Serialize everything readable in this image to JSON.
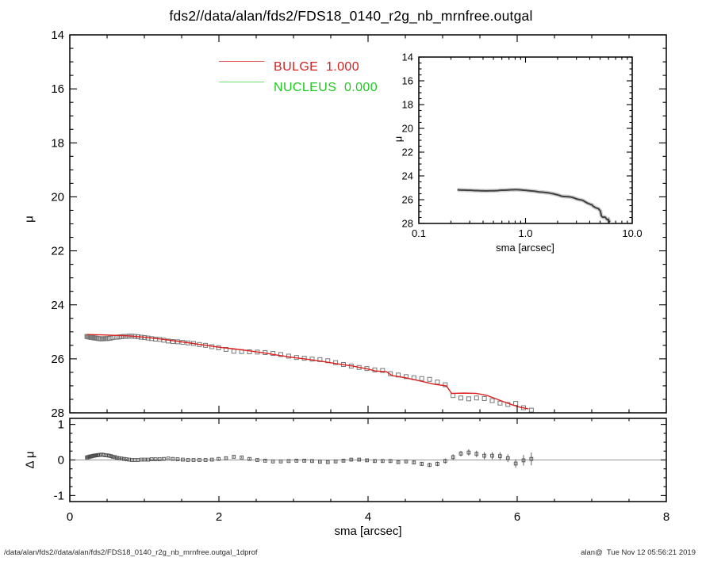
{
  "title": "fds2//data/alan/fds2/FDS18_0140_r2g_nb_mrnfree.outgal",
  "footer": {
    "left": "/data/alan/fds2//data/alan/fds2/FDS18_0140_r2g_nb_mrnfree.outgal_1dprof",
    "right": "alan@  Tue Nov 12 05:56:21 2019"
  },
  "legend": {
    "items": [
      {
        "label": "BULGE",
        "value": "1.000",
        "color": "#d42020",
        "line_color": "#e06060"
      },
      {
        "label": "NUCLEUS",
        "value": "0.000",
        "color": "#1ec81e",
        "line_color": "#6fdc6f"
      }
    ]
  },
  "chart_data": {
    "main": {
      "type": "scatter",
      "xlabel": "sma [arcsec]",
      "ylabel": "μ",
      "xlim": [
        0,
        8
      ],
      "ylim": [
        28,
        14
      ],
      "x_ticks": [
        0,
        2,
        4,
        6,
        8
      ],
      "x_tick_labels": [
        "0",
        "2",
        "4",
        "6",
        "8"
      ],
      "y_ticks": [
        14,
        16,
        18,
        20,
        22,
        24,
        26,
        28
      ],
      "y_tick_labels": [
        "14",
        "16",
        "18",
        "20",
        "22",
        "24",
        "26",
        "28"
      ],
      "x_minor_step": 0.5,
      "y_minor_step": 0.5,
      "grid": false,
      "series": [
        {
          "name": "surface-brightness-data",
          "kind": "marker",
          "marker": "open-square",
          "color": "#777777",
          "points": [
            [
              0.23,
              25.17
            ],
            [
              0.241,
              25.18
            ],
            [
              0.252,
              25.19
            ],
            [
              0.264,
              25.19
            ],
            [
              0.276,
              25.2
            ],
            [
              0.289,
              25.21
            ],
            [
              0.303,
              25.21
            ],
            [
              0.317,
              25.22
            ],
            [
              0.332,
              25.23
            ],
            [
              0.348,
              25.23
            ],
            [
              0.364,
              25.24
            ],
            [
              0.381,
              25.25
            ],
            [
              0.399,
              25.25
            ],
            [
              0.418,
              25.26
            ],
            [
              0.438,
              25.26
            ],
            [
              0.458,
              25.25
            ],
            [
              0.48,
              25.25
            ],
            [
              0.502,
              25.25
            ],
            [
              0.526,
              25.24
            ],
            [
              0.551,
              25.23
            ],
            [
              0.577,
              25.21
            ],
            [
              0.604,
              25.2
            ],
            [
              0.632,
              25.2
            ],
            [
              0.662,
              25.19
            ],
            [
              0.693,
              25.18
            ],
            [
              0.726,
              25.17
            ],
            [
              0.76,
              25.17
            ],
            [
              0.796,
              25.16
            ],
            [
              0.833,
              25.16
            ],
            [
              0.873,
              25.17
            ],
            [
              0.914,
              25.18
            ],
            [
              0.957,
              25.2
            ],
            [
              1.002,
              25.21
            ],
            [
              1.049,
              25.23
            ],
            [
              1.098,
              25.25
            ],
            [
              1.15,
              25.27
            ],
            [
              1.204,
              25.28
            ],
            [
              1.26,
              25.31
            ],
            [
              1.32,
              25.34
            ],
            [
              1.382,
              25.36
            ],
            [
              1.447,
              25.37
            ],
            [
              1.515,
              25.39
            ],
            [
              1.586,
              25.41
            ],
            [
              1.66,
              25.43
            ],
            [
              1.738,
              25.47
            ],
            [
              1.82,
              25.5
            ],
            [
              1.906,
              25.55
            ],
            [
              1.995,
              25.59
            ],
            [
              2.095,
              25.65
            ],
            [
              2.2,
              25.72
            ],
            [
              2.305,
              25.73
            ],
            [
              2.41,
              25.74
            ],
            [
              2.515,
              25.75
            ],
            [
              2.62,
              25.77
            ],
            [
              2.725,
              25.8
            ],
            [
              2.83,
              25.84
            ],
            [
              2.935,
              25.9
            ],
            [
              3.04,
              25.95
            ],
            [
              3.145,
              25.98
            ],
            [
              3.25,
              26.01
            ],
            [
              3.355,
              26.03
            ],
            [
              3.46,
              26.07
            ],
            [
              3.565,
              26.14
            ],
            [
              3.67,
              26.21
            ],
            [
              3.775,
              26.27
            ],
            [
              3.88,
              26.32
            ],
            [
              3.985,
              26.36
            ],
            [
              4.09,
              26.41
            ],
            [
              4.195,
              26.43
            ],
            [
              4.3,
              26.55
            ],
            [
              4.405,
              26.6
            ],
            [
              4.51,
              26.66
            ],
            [
              4.615,
              26.7
            ],
            [
              4.72,
              26.73
            ],
            [
              4.825,
              26.76
            ],
            [
              4.93,
              26.86
            ],
            [
              5.035,
              26.96
            ],
            [
              5.14,
              27.36
            ],
            [
              5.245,
              27.45
            ],
            [
              5.35,
              27.48
            ],
            [
              5.455,
              27.45
            ],
            [
              5.56,
              27.47
            ],
            [
              5.665,
              27.55
            ],
            [
              5.77,
              27.64
            ],
            [
              5.875,
              27.69
            ],
            [
              5.98,
              27.65
            ],
            [
              6.085,
              27.81
            ],
            [
              6.19,
              27.9
            ]
          ]
        },
        {
          "name": "bulge-model",
          "kind": "line",
          "color": "#dd2020",
          "points": [
            [
              0.23,
              25.1
            ],
            [
              0.4,
              25.11
            ],
            [
              0.6,
              25.13
            ],
            [
              0.8,
              25.15
            ],
            [
              1.0,
              25.2
            ],
            [
              1.2,
              25.26
            ],
            [
              1.4,
              25.33
            ],
            [
              1.6,
              25.41
            ],
            [
              1.8,
              25.49
            ],
            [
              2.0,
              25.57
            ],
            [
              2.2,
              25.63
            ],
            [
              2.4,
              25.7
            ],
            [
              2.6,
              25.78
            ],
            [
              2.8,
              25.87
            ],
            [
              3.0,
              25.95
            ],
            [
              3.2,
              26.02
            ],
            [
              3.4,
              26.1
            ],
            [
              3.6,
              26.19
            ],
            [
              3.8,
              26.27
            ],
            [
              4.0,
              26.38
            ],
            [
              4.1,
              26.45
            ],
            [
              4.25,
              26.48
            ],
            [
              4.32,
              26.62
            ],
            [
              4.5,
              26.7
            ],
            [
              4.7,
              26.82
            ],
            [
              4.9,
              26.95
            ],
            [
              5.05,
              27.0
            ],
            [
              5.12,
              27.28
            ],
            [
              5.3,
              27.27
            ],
            [
              5.45,
              27.28
            ],
            [
              5.6,
              27.36
            ],
            [
              5.8,
              27.57
            ],
            [
              5.95,
              27.72
            ],
            [
              6.05,
              27.8
            ],
            [
              6.15,
              27.85
            ]
          ]
        }
      ]
    },
    "inset": {
      "type": "line",
      "xscale": "log",
      "xlabel": "sma [arcsec]",
      "ylabel": "μ",
      "xlim": [
        0.1,
        10
      ],
      "ylim": [
        28,
        14
      ],
      "x_ticks": [
        0.1,
        1.0,
        10.0
      ],
      "x_tick_labels": [
        "0.1",
        "1.0",
        "10.0"
      ],
      "y_ticks": [
        14,
        16,
        18,
        20,
        22,
        24,
        26,
        28
      ],
      "y_tick_labels": [
        "14",
        "16",
        "18",
        "20",
        "22",
        "24",
        "26",
        "28"
      ],
      "y_minor_step": 0.5,
      "series_ref": "main.series.0.points",
      "band_color": "#aaaaaa",
      "line_color": "#404040"
    },
    "residuals": {
      "type": "scatter",
      "xlabel": "sma [arcsec]",
      "ylabel": "Δ μ",
      "xlim": [
        0,
        8
      ],
      "ylim": [
        -1,
        1
      ],
      "x_ticks": [
        0,
        2,
        4,
        6,
        8
      ],
      "x_tick_labels": [
        "0",
        "2",
        "4",
        "6",
        "8"
      ],
      "y_ticks": [
        -1,
        0,
        1
      ],
      "y_tick_labels": [
        "-1",
        "0",
        "1"
      ],
      "x_minor_step": 0.5,
      "y_minor_step": 0.25,
      "zero_line": true,
      "zero_line_color": "#949494",
      "marker_color": "#4d4d4d",
      "points": [
        [
          0.23,
          0.07,
          0.015
        ],
        [
          0.241,
          0.08,
          0.015
        ],
        [
          0.252,
          0.08,
          0.015
        ],
        [
          0.264,
          0.09,
          0.015
        ],
        [
          0.276,
          0.1,
          0.015
        ],
        [
          0.289,
          0.1,
          0.015
        ],
        [
          0.303,
          0.11,
          0.015
        ],
        [
          0.317,
          0.12,
          0.015
        ],
        [
          0.332,
          0.12,
          0.015
        ],
        [
          0.348,
          0.13,
          0.015
        ],
        [
          0.364,
          0.13,
          0.015
        ],
        [
          0.381,
          0.14,
          0.015
        ],
        [
          0.399,
          0.14,
          0.015
        ],
        [
          0.418,
          0.15,
          0.015
        ],
        [
          0.438,
          0.15,
          0.015
        ],
        [
          0.458,
          0.14,
          0.015
        ],
        [
          0.48,
          0.13,
          0.015
        ],
        [
          0.502,
          0.13,
          0.015
        ],
        [
          0.526,
          0.12,
          0.015
        ],
        [
          0.551,
          0.11,
          0.015
        ],
        [
          0.577,
          0.09,
          0.015
        ],
        [
          0.604,
          0.08,
          0.015
        ],
        [
          0.632,
          0.06,
          0.015
        ],
        [
          0.662,
          0.05,
          0.015
        ],
        [
          0.693,
          0.04,
          0.015
        ],
        [
          0.726,
          0.03,
          0.015
        ],
        [
          0.76,
          0.02,
          0.015
        ],
        [
          0.796,
          0.01,
          0.015
        ],
        [
          0.833,
          0.0,
          0.015
        ],
        [
          0.873,
          0.0,
          0.015
        ],
        [
          0.914,
          0.0,
          0.015
        ],
        [
          0.957,
          0.01,
          0.015
        ],
        [
          1.002,
          0.01,
          0.015
        ],
        [
          1.049,
          0.01,
          0.015
        ],
        [
          1.098,
          0.02,
          0.015
        ],
        [
          1.15,
          0.02,
          0.015
        ],
        [
          1.204,
          0.02,
          0.015
        ],
        [
          1.26,
          0.03,
          0.015
        ],
        [
          1.32,
          0.04,
          0.015
        ],
        [
          1.382,
          0.03,
          0.015
        ],
        [
          1.447,
          0.02,
          0.015
        ],
        [
          1.515,
          0.01,
          0.015
        ],
        [
          1.586,
          0.0,
          0.015
        ],
        [
          1.66,
          0.0,
          0.015
        ],
        [
          1.738,
          0.0,
          0.015
        ],
        [
          1.82,
          0.0,
          0.015
        ],
        [
          1.906,
          0.01,
          0.015
        ],
        [
          1.995,
          0.03,
          0.015
        ],
        [
          2.095,
          0.05,
          0.02
        ],
        [
          2.2,
          0.09,
          0.02
        ],
        [
          2.305,
          0.07,
          0.02
        ],
        [
          2.41,
          0.03,
          0.02
        ],
        [
          2.515,
          0.0,
          0.02
        ],
        [
          2.62,
          -0.02,
          0.02
        ],
        [
          2.725,
          -0.04,
          0.02
        ],
        [
          2.83,
          -0.04,
          0.02
        ],
        [
          2.935,
          -0.03,
          0.02
        ],
        [
          3.04,
          -0.02,
          0.025
        ],
        [
          3.145,
          -0.02,
          0.025
        ],
        [
          3.25,
          -0.03,
          0.025
        ],
        [
          3.355,
          -0.05,
          0.03
        ],
        [
          3.46,
          -0.06,
          0.03
        ],
        [
          3.565,
          -0.04,
          0.03
        ],
        [
          3.67,
          -0.02,
          0.035
        ],
        [
          3.775,
          0.01,
          0.035
        ],
        [
          3.88,
          0.01,
          0.04
        ],
        [
          3.985,
          -0.01,
          0.04
        ],
        [
          4.09,
          -0.03,
          0.045
        ],
        [
          4.195,
          -0.03,
          0.045
        ],
        [
          4.3,
          -0.03,
          0.05
        ],
        [
          4.405,
          -0.06,
          0.05
        ],
        [
          4.51,
          -0.04,
          0.05
        ],
        [
          4.615,
          -0.07,
          0.055
        ],
        [
          4.72,
          -0.11,
          0.06
        ],
        [
          4.825,
          -0.14,
          0.06
        ],
        [
          4.93,
          -0.11,
          0.065
        ],
        [
          5.035,
          -0.03,
          0.07
        ],
        [
          5.14,
          0.08,
          0.08
        ],
        [
          5.245,
          0.18,
          0.08
        ],
        [
          5.35,
          0.21,
          0.09
        ],
        [
          5.455,
          0.17,
          0.09
        ],
        [
          5.56,
          0.12,
          0.1
        ],
        [
          5.665,
          0.12,
          0.1
        ],
        [
          5.77,
          0.11,
          0.11
        ],
        [
          5.875,
          0.05,
          0.11
        ],
        [
          5.98,
          -0.1,
          0.12
        ],
        [
          6.085,
          -0.01,
          0.15
        ],
        [
          6.19,
          0.03,
          0.18
        ]
      ]
    }
  }
}
